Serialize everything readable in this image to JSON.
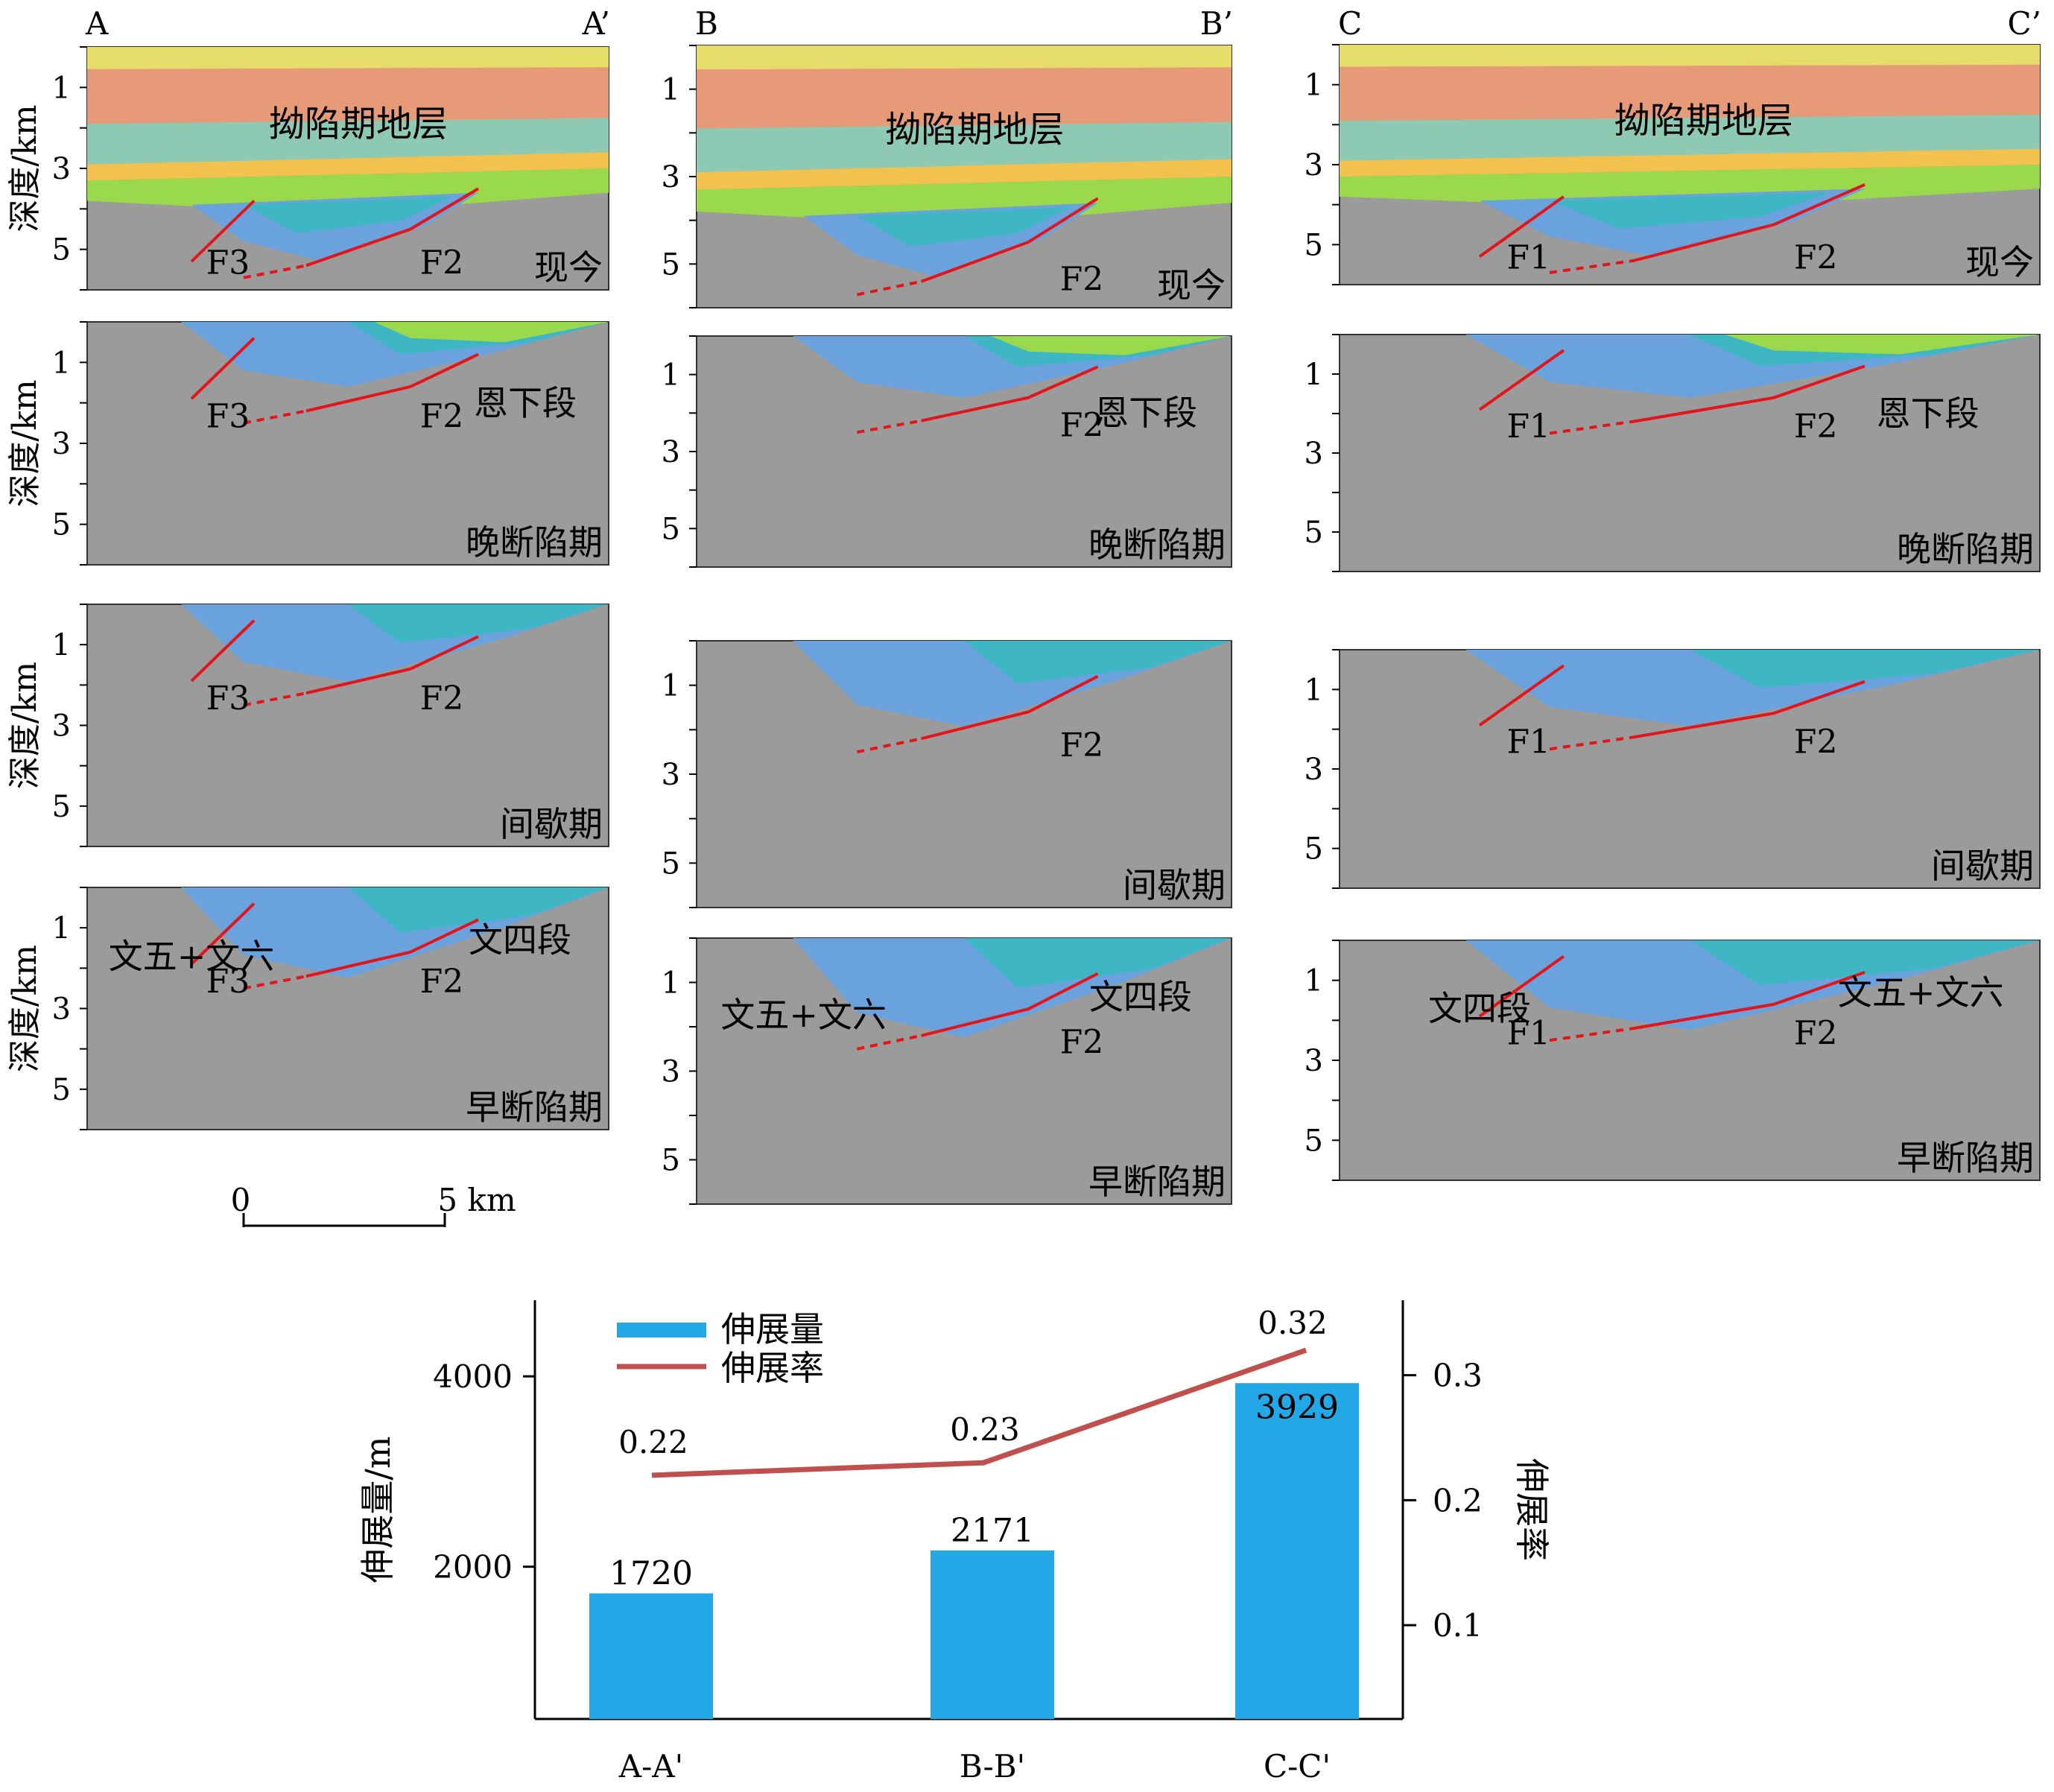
{
  "colors": {
    "gray": "#9b9b9b",
    "yellow": "#e6dc6a",
    "salmon": "#e69a78",
    "teal_light": "#8ec9b4",
    "orange": "#f3c24e",
    "green": "#9ad84c",
    "teal": "#3fb6c4",
    "blue": "#6aa2dd",
    "fault": "#e3141a",
    "bar": "#22a8e6",
    "line": "#c0504d"
  },
  "sections": [
    {
      "start_label": "A",
      "end_label": "A’",
      "panels": [
        {
          "stage": "现今",
          "formation_label": "拗陷期地层",
          "fault_labels": [
            "F3",
            "F2"
          ]
        },
        {
          "stage": "晚断陷期",
          "fault_labels": [
            "F3",
            "F2"
          ],
          "unit_label": "恩下段"
        },
        {
          "stage": "间歇期",
          "fault_labels": [
            "F3",
            "F2"
          ]
        },
        {
          "stage": "早断陷期",
          "fault_labels": [
            "F3",
            "F2"
          ],
          "unit_labels": [
            "文五+文六",
            "文四段"
          ]
        }
      ]
    },
    {
      "start_label": "B",
      "end_label": "B’",
      "panels": [
        {
          "stage": "现今",
          "formation_label": "拗陷期地层",
          "fault_labels": [
            "F2"
          ]
        },
        {
          "stage": "晚断陷期",
          "fault_labels": [
            "F2"
          ],
          "unit_label": "恩下段"
        },
        {
          "stage": "间歇期",
          "fault_labels": [
            "F2"
          ]
        },
        {
          "stage": "早断陷期",
          "fault_labels": [
            "F2"
          ],
          "unit_labels": [
            "文五+文六",
            "文四段"
          ]
        }
      ]
    },
    {
      "start_label": "C",
      "end_label": "C’",
      "panels": [
        {
          "stage": "现今",
          "formation_label": "拗陷期地层",
          "fault_labels": [
            "F1",
            "F2"
          ]
        },
        {
          "stage": "晚断陷期",
          "fault_labels": [
            "F1",
            "F2"
          ],
          "unit_label": "恩下段"
        },
        {
          "stage": "间歇期",
          "fault_labels": [
            "F1",
            "F2"
          ]
        },
        {
          "stage": "早断陷期",
          "fault_labels": [
            "F1",
            "F2"
          ],
          "unit_labels": [
            "文四段",
            "文五+文六"
          ]
        }
      ]
    }
  ],
  "depth_axis": {
    "label": "深度/km",
    "ticks": [
      "1",
      "3",
      "5"
    ]
  },
  "scale_bar": {
    "start": "0",
    "end": "5 km"
  },
  "chart_data": {
    "type": "bar",
    "categories": [
      "A-A'",
      "B-B'",
      "C-C'"
    ],
    "series": [
      {
        "name": "伸展量",
        "type": "bar",
        "axis": "left",
        "values": [
          1720,
          2171,
          3929
        ]
      },
      {
        "name": "伸展率",
        "type": "line",
        "axis": "right",
        "values": [
          0.22,
          0.23,
          0.32
        ]
      }
    ],
    "ylabel": "伸展量/m",
    "y2label": "伸展率",
    "ylim": [
      400,
      4800
    ],
    "y2lim": [
      0.025,
      0.36
    ],
    "yticks": [
      "4000",
      "2000"
    ],
    "y2ticks": [
      "0.3",
      "0.2",
      "0.1"
    ],
    "bar_labels": [
      "1720",
      "2171",
      "3929"
    ],
    "line_labels": [
      "0.22",
      "0.23",
      "0.32"
    ],
    "legend_position": "top-left"
  }
}
